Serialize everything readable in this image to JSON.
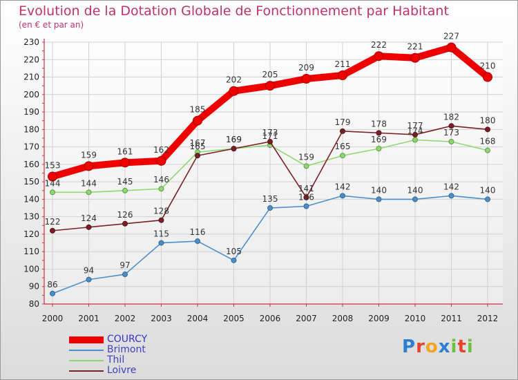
{
  "chart_data": {
    "type": "line",
    "title": "Evolution de la Dotation Globale de Fonctionnement par Habitant",
    "subtitle": "(en € et par an)",
    "x": [
      "2000",
      "2001",
      "2002",
      "2003",
      "2004",
      "2005",
      "2006",
      "2007",
      "2008",
      "2009",
      "2010",
      "2011",
      "2012"
    ],
    "yticks": [
      80,
      90,
      100,
      110,
      120,
      130,
      140,
      150,
      160,
      170,
      180,
      190,
      200,
      210,
      220,
      230
    ],
    "ylim": [
      80,
      230
    ],
    "grid": true,
    "legend_position": "bottom-left",
    "series": [
      {
        "name": "Brimont",
        "color": "#4a8fcc",
        "values": [
          86,
          94,
          97,
          115,
          116,
          105,
          135,
          136,
          142,
          140,
          140,
          142,
          140
        ],
        "labels": [
          "86",
          "94",
          "97",
          "115",
          "116",
          "105",
          "135",
          "136",
          "142",
          "140",
          "140",
          "142",
          "140"
        ]
      },
      {
        "name": "Thil",
        "color": "#8fd870",
        "values": [
          144,
          144,
          145,
          146,
          167,
          169,
          171,
          159,
          165,
          169,
          174,
          173,
          168
        ],
        "labels": [
          "144",
          "144",
          "145",
          "146",
          "167",
          "169",
          "171",
          "159",
          "165",
          "169",
          "174",
          "173",
          "168"
        ]
      },
      {
        "name": "Loivre",
        "color": "#7a1f25",
        "values": [
          122,
          124,
          126,
          128,
          165,
          169,
          173,
          141,
          179,
          178,
          177,
          182,
          180
        ],
        "labels": [
          "122",
          "124",
          "126",
          "128",
          "165",
          "169",
          "173",
          "141",
          "179",
          "178",
          "177",
          "182",
          "180"
        ]
      },
      {
        "name": "COURCY",
        "color": "#ee0000",
        "values": [
          153,
          159,
          161,
          162,
          185,
          202,
          205,
          209,
          211,
          222,
          221,
          227,
          210
        ],
        "labels": [
          "153",
          "159",
          "161",
          "162",
          "185",
          "202",
          "205",
          "209",
          "211",
          "222",
          "221",
          "227",
          "210"
        ]
      }
    ]
  },
  "legend": [
    {
      "name": "COURCY",
      "color": "#ee0000",
      "thickness": 10
    },
    {
      "name": "Brimont",
      "color": "#4a8fcc",
      "thickness": 2
    },
    {
      "name": "Thil",
      "color": "#8fd870",
      "thickness": 2
    },
    {
      "name": "Loivre",
      "color": "#7a1f25",
      "thickness": 2
    }
  ],
  "logo": {
    "letters": [
      {
        "ch": "P",
        "color": "#2a7fd0"
      },
      {
        "ch": "r",
        "color": "#e7422b"
      },
      {
        "ch": "o",
        "color": "#f2a620"
      },
      {
        "ch": "x",
        "color": "#2a7fd0"
      },
      {
        "ch": "i",
        "color": "#6bc043"
      },
      {
        "ch": "t",
        "color": "#e7422b"
      },
      {
        "ch": "i",
        "color": "#6bc043"
      }
    ]
  }
}
